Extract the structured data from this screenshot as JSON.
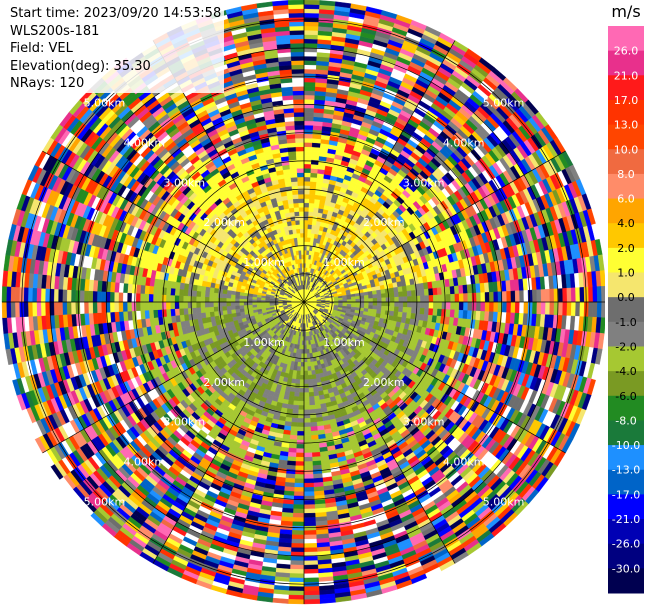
{
  "header": {
    "start_time": "Start time: 2023/09/20 14:53:58",
    "instrument": "WLS200s-181",
    "field": "Field: VEL",
    "elevation": "Elevation(deg): 35.30",
    "nrays": "NRays: 120"
  },
  "range_rings": {
    "labels_km": [
      "1.00km",
      "2.00km",
      "3.00km",
      "4.00km",
      "5.00km"
    ],
    "max_range_km": 5.35
  },
  "colorbar": {
    "unit": "m/s",
    "ticks": [
      "26.0",
      "21.0",
      "17.0",
      "13.0",
      "10.0",
      "8.0",
      "6.0",
      "4.0",
      "2.0",
      "1.0",
      "0.0",
      "-1.0",
      "-2.0",
      "-4.0",
      "-6.0",
      "-8.0",
      "-10.0",
      "-13.0",
      "-17.0",
      "-21.0",
      "-26.0",
      "-30.0"
    ],
    "colors": [
      "#ff69b4",
      "#e8308c",
      "#ff1a1a",
      "#ff3300",
      "#ff4500",
      "#f06a40",
      "#ff8c69",
      "#ffa500",
      "#ffc800",
      "#ffff33",
      "#f5e66e",
      "#6e6e6e",
      "#808080",
      "#a6c832",
      "#7a9a23",
      "#228b22",
      "#1a7a3a",
      "#1e90ff",
      "#0064c8",
      "#0000ff",
      "#0000b4",
      "#000080",
      "#000050"
    ]
  },
  "colors": {
    "background": "#ffffff",
    "grid": "#000000"
  }
}
